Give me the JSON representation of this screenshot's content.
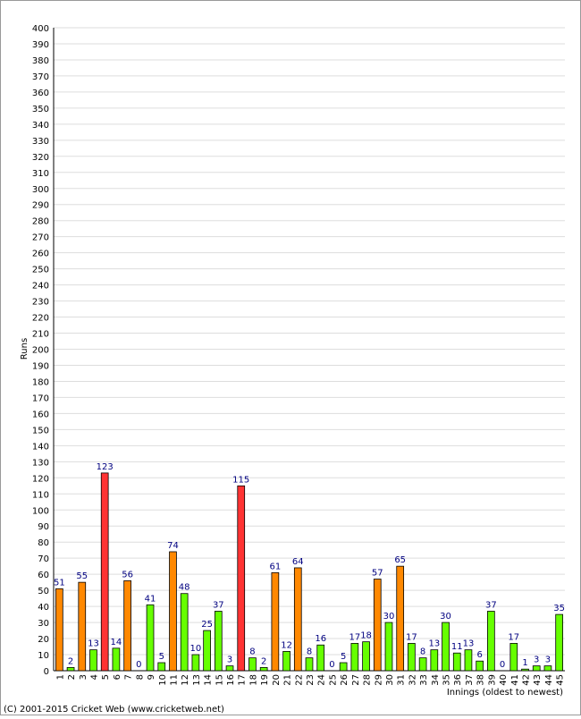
{
  "chart_data": {
    "type": "bar",
    "categories": [
      "1",
      "2",
      "3",
      "4",
      "5",
      "6",
      "7",
      "8",
      "9",
      "10",
      "11",
      "12",
      "13",
      "14",
      "15",
      "16",
      "17",
      "18",
      "19",
      "20",
      "21",
      "22",
      "23",
      "24",
      "25",
      "26",
      "27",
      "28",
      "29",
      "30",
      "31",
      "32",
      "33",
      "34",
      "35",
      "36",
      "37",
      "38",
      "39",
      "40",
      "41",
      "42",
      "43",
      "44",
      "45"
    ],
    "values": [
      51,
      2,
      55,
      13,
      123,
      14,
      56,
      0,
      41,
      5,
      74,
      48,
      10,
      25,
      37,
      3,
      115,
      8,
      2,
      61,
      12,
      64,
      8,
      16,
      0,
      5,
      17,
      18,
      57,
      30,
      65,
      17,
      8,
      13,
      30,
      11,
      13,
      6,
      37,
      0,
      17,
      1,
      3,
      3,
      35
    ],
    "bar_colors": [
      "#ff8800",
      "#66ff00",
      "#ff8800",
      "#66ff00",
      "#ff3333",
      "#66ff00",
      "#ff8800",
      "#66ff00",
      "#66ff00",
      "#66ff00",
      "#ff8800",
      "#66ff00",
      "#66ff00",
      "#66ff00",
      "#66ff00",
      "#66ff00",
      "#ff3333",
      "#66ff00",
      "#66ff00",
      "#ff8800",
      "#66ff00",
      "#ff8800",
      "#66ff00",
      "#66ff00",
      "#66ff00",
      "#66ff00",
      "#66ff00",
      "#66ff00",
      "#ff8800",
      "#66ff00",
      "#ff8800",
      "#66ff00",
      "#66ff00",
      "#66ff00",
      "#66ff00",
      "#66ff00",
      "#66ff00",
      "#66ff00",
      "#66ff00",
      "#66ff00",
      "#66ff00",
      "#66ff00",
      "#66ff00",
      "#66ff00",
      "#66ff00"
    ],
    "value_label_color": "#000080",
    "ylim": [
      0,
      400
    ],
    "yticks": [
      0,
      10,
      20,
      30,
      40,
      50,
      60,
      70,
      80,
      90,
      100,
      110,
      120,
      130,
      140,
      150,
      160,
      170,
      180,
      190,
      200,
      210,
      220,
      230,
      240,
      250,
      260,
      270,
      280,
      290,
      300,
      310,
      320,
      330,
      340,
      350,
      360,
      370,
      380,
      390,
      400
    ],
    "grid": true,
    "y_label": "Runs",
    "x_label": "Innings (oldest to newest)",
    "footer": "(C) 2001-2015 Cricket Web (www.cricketweb.net)"
  }
}
